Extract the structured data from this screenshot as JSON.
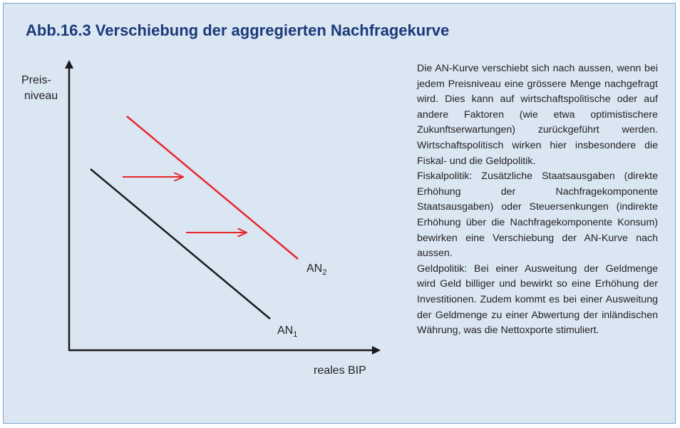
{
  "title": "Abb.16.3  Verschiebung der aggregierten Nachfragekurve",
  "diagram": {
    "y_axis_label_line1": "Preis-",
    "y_axis_label_line2": "niveau",
    "x_axis_label": "reales BIP",
    "curve1_label": "AN",
    "curve1_sub": "1",
    "curve2_label": "AN",
    "curve2_sub": "2",
    "curve1_color": "#1a1a1a",
    "curve2_color": "#e8262b",
    "arrow_color": "#e8262b",
    "axis_color": "#1a1a1a"
  },
  "text": {
    "p1": "Die AN-Kurve verschiebt sich nach aussen, wenn bei jedem Preisniveau eine grössere Menge nachgefragt wird. Dies kann auf wirtschafts­politische oder auf andere Faktoren (wie etwa optimistischere Zukunftserwartungen) zurück­geführt werden. Wirtschaftspolitisch wirken hier insbesondere die Fiskal- und die Geldpolitik.",
    "p2": "Fiskalpolitik: Zusätzliche Staatsausgaben (di­rekte Erhöhung der Nachfragekomponente Staatsausgaben) oder Steuersenkungen (indi­rekte Erhöhung über die Nachfragekomponente Konsum) bewirken eine Verschiebung der AN-Kurve nach aussen.",
    "p3": "Geldpolitik: Bei einer Ausweitung der Geld­menge wird Geld billiger und bewirkt so eine Erhöhung der Investitionen. Zudem kommt es bei einer Ausweitung der Geldmenge zu einer Abwertung der inländischen Währung, was die Nettoxporte stimuliert."
  }
}
